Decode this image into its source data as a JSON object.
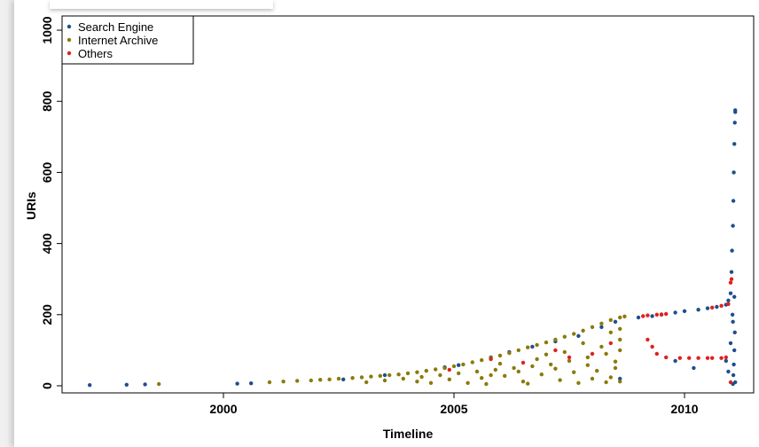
{
  "chart_data": {
    "type": "scatter",
    "xlabel": "Timeline",
    "ylabel": "URIs",
    "xlim": [
      1996.5,
      2011.5
    ],
    "ylim": [
      -20,
      1040
    ],
    "xticks": [
      2000,
      2005,
      2010
    ],
    "yticks": [
      0,
      200,
      400,
      600,
      800,
      1000
    ],
    "legend": {
      "position": "top-left"
    },
    "grid": false,
    "series": [
      {
        "name": "Search Engine",
        "color": "#1f4e8c",
        "points": [
          [
            1997.1,
            2
          ],
          [
            1997.9,
            3
          ],
          [
            1998.3,
            4
          ],
          [
            2000.3,
            6
          ],
          [
            2000.6,
            7
          ],
          [
            2002.6,
            18
          ],
          [
            2003.5,
            30
          ],
          [
            2004.8,
            52
          ],
          [
            2005.1,
            58
          ],
          [
            2005.8,
            80
          ],
          [
            2006.2,
            95
          ],
          [
            2006.7,
            110
          ],
          [
            2007.2,
            125
          ],
          [
            2007.7,
            140
          ],
          [
            2008.2,
            165
          ],
          [
            2008.5,
            180
          ],
          [
            2008.6,
            20
          ],
          [
            2009.0,
            192
          ],
          [
            2009.3,
            196
          ],
          [
            2009.5,
            200
          ],
          [
            2009.8,
            206
          ],
          [
            2010.0,
            210
          ],
          [
            2010.3,
            214
          ],
          [
            2010.5,
            218
          ],
          [
            2010.7,
            222
          ],
          [
            2010.9,
            228
          ],
          [
            2010.95,
            240
          ],
          [
            2011.0,
            260
          ],
          [
            2011.02,
            320
          ],
          [
            2011.03,
            380
          ],
          [
            2011.05,
            450
          ],
          [
            2011.06,
            520
          ],
          [
            2011.07,
            600
          ],
          [
            2011.08,
            680
          ],
          [
            2011.09,
            740
          ],
          [
            2011.1,
            770
          ],
          [
            2011.1,
            775
          ],
          [
            2011.05,
            5
          ],
          [
            2011.06,
            30
          ],
          [
            2011.07,
            60
          ],
          [
            2011.08,
            100
          ],
          [
            2011.09,
            150
          ],
          [
            2011.04,
            200
          ],
          [
            2010.95,
            40
          ],
          [
            2010.9,
            70
          ],
          [
            2011.0,
            120
          ],
          [
            2011.05,
            180
          ],
          [
            2011.08,
            250
          ],
          [
            2011.1,
            10
          ],
          [
            2009.8,
            70
          ],
          [
            2010.2,
            50
          ]
        ]
      },
      {
        "name": "Internet Archive",
        "color": "#8b7a0a",
        "points": [
          [
            1998.6,
            5
          ],
          [
            2001.0,
            10
          ],
          [
            2001.3,
            12
          ],
          [
            2001.6,
            14
          ],
          [
            2001.9,
            15
          ],
          [
            2002.1,
            17
          ],
          [
            2002.3,
            18
          ],
          [
            2002.5,
            20
          ],
          [
            2002.8,
            22
          ],
          [
            2003.0,
            24
          ],
          [
            2003.2,
            26
          ],
          [
            2003.4,
            28
          ],
          [
            2003.6,
            30
          ],
          [
            2003.8,
            32
          ],
          [
            2004.0,
            35
          ],
          [
            2004.2,
            38
          ],
          [
            2004.4,
            42
          ],
          [
            2004.6,
            46
          ],
          [
            2004.8,
            50
          ],
          [
            2005.0,
            55
          ],
          [
            2005.2,
            60
          ],
          [
            2005.4,
            66
          ],
          [
            2005.6,
            72
          ],
          [
            2005.8,
            78
          ],
          [
            2006.0,
            85
          ],
          [
            2006.2,
            92
          ],
          [
            2006.4,
            100
          ],
          [
            2006.6,
            108
          ],
          [
            2006.8,
            115
          ],
          [
            2007.0,
            122
          ],
          [
            2007.2,
            130
          ],
          [
            2007.4,
            138
          ],
          [
            2007.6,
            146
          ],
          [
            2007.8,
            155
          ],
          [
            2008.0,
            165
          ],
          [
            2008.2,
            175
          ],
          [
            2008.4,
            185
          ],
          [
            2008.6,
            192
          ],
          [
            2008.7,
            195
          ],
          [
            2003.1,
            10
          ],
          [
            2003.5,
            15
          ],
          [
            2003.9,
            20
          ],
          [
            2004.3,
            25
          ],
          [
            2004.7,
            30
          ],
          [
            2005.1,
            35
          ],
          [
            2005.5,
            40
          ],
          [
            2005.9,
            45
          ],
          [
            2006.3,
            50
          ],
          [
            2006.7,
            55
          ],
          [
            2007.1,
            60
          ],
          [
            2007.5,
            70
          ],
          [
            2007.9,
            80
          ],
          [
            2008.3,
            90
          ],
          [
            2008.6,
            100
          ],
          [
            2004.2,
            12
          ],
          [
            2004.9,
            18
          ],
          [
            2005.6,
            22
          ],
          [
            2006.1,
            28
          ],
          [
            2006.9,
            32
          ],
          [
            2007.6,
            38
          ],
          [
            2008.1,
            42
          ],
          [
            2008.5,
            50
          ],
          [
            2005.3,
            8
          ],
          [
            2006.5,
            12
          ],
          [
            2007.3,
            16
          ],
          [
            2008.0,
            20
          ],
          [
            2008.4,
            24
          ],
          [
            2006.0,
            62
          ],
          [
            2006.8,
            75
          ],
          [
            2007.4,
            95
          ],
          [
            2008.2,
            110
          ],
          [
            2008.6,
            130
          ],
          [
            2007.0,
            88
          ],
          [
            2007.8,
            120
          ],
          [
            2008.4,
            150
          ],
          [
            2008.6,
            160
          ],
          [
            2005.8,
            30
          ],
          [
            2006.4,
            40
          ],
          [
            2007.2,
            48
          ],
          [
            2007.9,
            58
          ],
          [
            2008.5,
            68
          ],
          [
            2004.5,
            8
          ],
          [
            2005.7,
            5
          ],
          [
            2006.6,
            6
          ],
          [
            2007.7,
            8
          ],
          [
            2008.3,
            10
          ],
          [
            2008.6,
            12
          ]
        ]
      },
      {
        "name": "Others",
        "color": "#e0201e",
        "points": [
          [
            2004.9,
            45
          ],
          [
            2005.8,
            75
          ],
          [
            2006.5,
            65
          ],
          [
            2007.2,
            100
          ],
          [
            2007.5,
            80
          ],
          [
            2008.0,
            90
          ],
          [
            2008.4,
            120
          ],
          [
            2009.2,
            198
          ],
          [
            2009.4,
            200
          ],
          [
            2009.6,
            202
          ],
          [
            2009.2,
            130
          ],
          [
            2009.3,
            110
          ],
          [
            2009.4,
            90
          ],
          [
            2009.6,
            80
          ],
          [
            2009.9,
            78
          ],
          [
            2010.1,
            78
          ],
          [
            2010.3,
            78
          ],
          [
            2010.5,
            78
          ],
          [
            2010.6,
            78
          ],
          [
            2010.8,
            78
          ],
          [
            2010.9,
            80
          ],
          [
            2010.6,
            220
          ],
          [
            2010.8,
            225
          ],
          [
            2010.95,
            230
          ],
          [
            2011.0,
            290
          ],
          [
            2011.02,
            300
          ],
          [
            2011.0,
            10
          ],
          [
            2009.1,
            196
          ],
          [
            2009.5,
            201
          ]
        ]
      }
    ]
  }
}
